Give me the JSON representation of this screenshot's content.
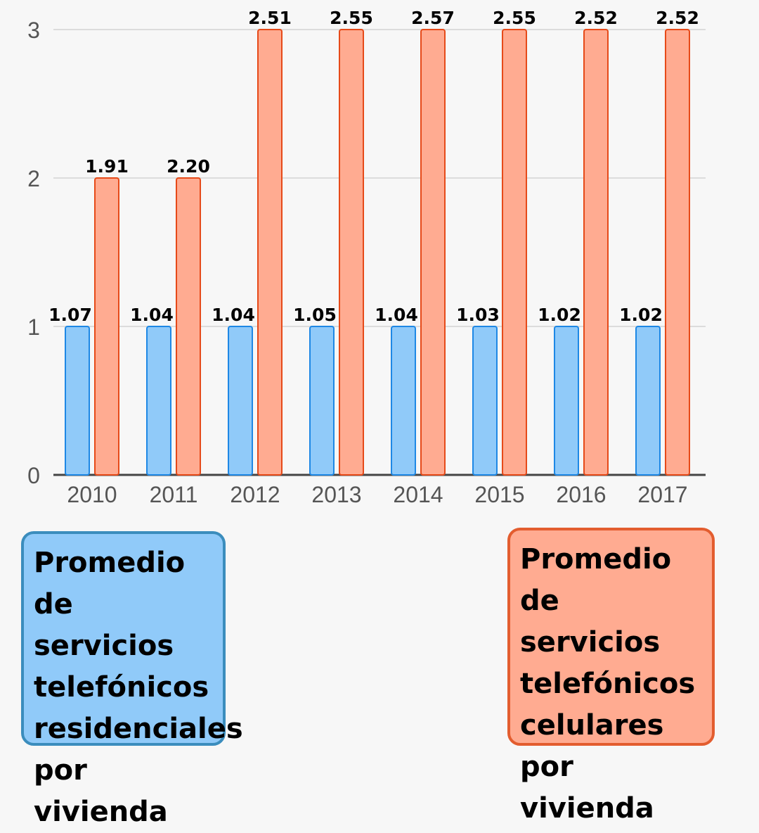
{
  "chart_data": {
    "type": "bar",
    "categories": [
      "2010",
      "2011",
      "2012",
      "2013",
      "2014",
      "2015",
      "2016",
      "2017"
    ],
    "series": [
      {
        "name": "Promedio de servicios telefónicos residenciales por vivienda",
        "color": "#90caf9",
        "stroke": "#1e88e5",
        "values": [
          1.07,
          1.04,
          1.04,
          1.05,
          1.04,
          1.03,
          1.02,
          1.02
        ],
        "labels": [
          "1.07",
          "1.04",
          "1.04",
          "1.05",
          "1.04",
          "1.03",
          "1.02",
          "1.02"
        ]
      },
      {
        "name": "Promedio de servicios telefónicos celulares por vivienda",
        "color": "#ffab91",
        "stroke": "#e64a19",
        "values": [
          1.91,
          2.2,
          2.51,
          2.55,
          2.57,
          2.55,
          2.52,
          2.52
        ],
        "labels": [
          "1.91",
          "2.20",
          "2.51",
          "2.55",
          "2.57",
          "2.55",
          "2.52",
          "2.52"
        ]
      }
    ],
    "ylim": [
      0,
      3
    ],
    "yticks": [
      "0",
      "1",
      "2",
      "3"
    ],
    "grid": true,
    "legend_placement": "bottom",
    "note": "bar heights rounded to whole units; labels show exact values"
  },
  "legend": {
    "residenciales": "Promedio de\nservicios\ntelefónicos\nresidenciales\npor vivienda",
    "celulares": "Promedio de\nservicios\ntelefónicos\ncelulares por\nvivienda"
  }
}
